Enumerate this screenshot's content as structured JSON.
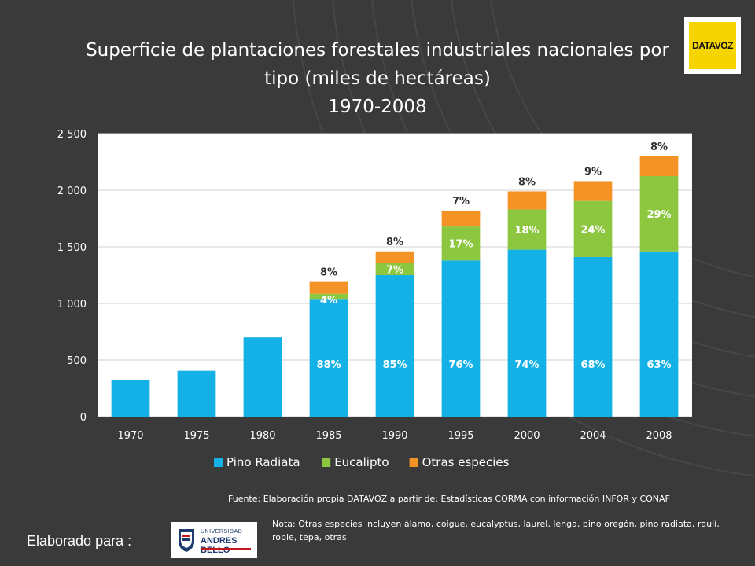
{
  "header": {
    "title_line1": "Superficie de plantaciones forestales industriales nacionales por",
    "title_line2": "tipo (miles de hectáreas)",
    "title_line3": "1970-2008"
  },
  "logo": {
    "text": "DATAVOZ"
  },
  "footer": {
    "source": "Fuente: Elaboración propia DATAVOZ a partir de: Estadísticas CORMA con información INFOR y CONAF",
    "note": "Nota: Otras especies incluyen álamo, coigue, eucalyptus, laurel, lenga, pino oregón, pino radiata, raulí, roble, tepa, otras",
    "elaborado": "Elaborado para :",
    "university_top": "UNIVERSIDAD",
    "university_name": "ANDRES BELLO"
  },
  "colors": {
    "pino": "#14b1e7",
    "eucalipto": "#8dc63f",
    "otras": "#f39325",
    "plot_bg": "#ffffff",
    "background": "#3a3a3a"
  },
  "chart_data": {
    "type": "bar",
    "stacked": true,
    "title": "Superficie de plantaciones forestales industriales nacionales por tipo (miles de hectáreas) 1970-2008",
    "xlabel": "",
    "ylabel": "",
    "ylim": [
      0,
      2500
    ],
    "yticks": [
      0,
      500,
      1000,
      1500,
      2000,
      2500
    ],
    "ytick_labels": [
      "0",
      "500",
      "1 000",
      "1 500",
      "2 000",
      "2 500"
    ],
    "categories": [
      "1970",
      "1975",
      "1980",
      "1985",
      "1990",
      "1995",
      "2000",
      "2004",
      "2008"
    ],
    "legend_position": "bottom",
    "series": [
      {
        "name": "Pino Radiata",
        "color": "#14b1e7",
        "values": [
          320,
          405,
          700,
          1040,
          1250,
          1380,
          1475,
          1410,
          1460
        ],
        "labels": [
          "",
          "",
          "",
          "88%",
          "85%",
          "76%",
          "74%",
          "68%",
          "63%"
        ]
      },
      {
        "name": "Eucalipto",
        "color": "#8dc63f",
        "values": [
          0,
          0,
          0,
          45,
          105,
          300,
          355,
          495,
          665
        ],
        "labels": [
          "",
          "",
          "",
          "4%",
          "7%",
          "17%",
          "18%",
          "24%",
          "29%"
        ]
      },
      {
        "name": "Otras especies",
        "color": "#f39325",
        "values": [
          0,
          0,
          0,
          105,
          105,
          140,
          160,
          175,
          175
        ],
        "labels": [
          "",
          "",
          "",
          "8%",
          "8%",
          "7%",
          "8%",
          "9%",
          "8%"
        ]
      }
    ]
  }
}
